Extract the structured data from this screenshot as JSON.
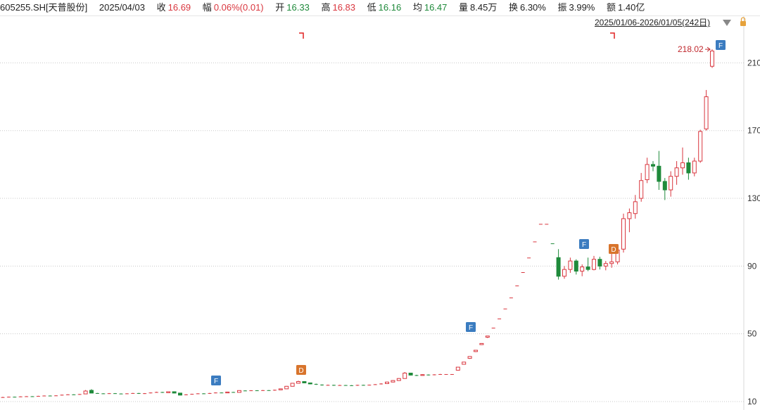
{
  "header": {
    "code": "605255.SH[天普股份]",
    "date": "2025/04/03",
    "fields": [
      {
        "label": "收",
        "value": "16.69"
      },
      {
        "label": "幅",
        "value": "0.06%(0.01)"
      },
      {
        "label": "开",
        "value": "16.33"
      },
      {
        "label": "高",
        "value": "16.83"
      },
      {
        "label": "低",
        "value": "16.16"
      },
      {
        "label": "均",
        "value": "16.47"
      },
      {
        "label": "量",
        "value": "8.45万"
      },
      {
        "label": "换",
        "value": "6.30%"
      },
      {
        "label": "振",
        "value": "3.99%"
      },
      {
        "label": "额",
        "value": "1.40亿"
      }
    ],
    "range": "2025/01/06-2026/01/05(242日)"
  },
  "chart_data": {
    "type": "candlestick",
    "up_color": "#d9363e",
    "down_color": "#1f8a3b",
    "grid": true,
    "ylim": [
      5,
      238
    ],
    "yticks": [
      10,
      50,
      90,
      130,
      170,
      210
    ],
    "annotation": "218.02",
    "markers": [
      "F",
      "D",
      "F",
      "F",
      "D",
      "F"
    ],
    "open": [
      12.5,
      12.6,
      12.8,
      12.7,
      13.0,
      13.1,
      13.0,
      13.3,
      13.5,
      13.4,
      13.6,
      14.0,
      14.2,
      14.1,
      14.5,
      16.6,
      15.0,
      14.8,
      14.6,
      14.9,
      14.7,
      14.5,
      14.8,
      15.0,
      14.6,
      14.9,
      15.3,
      15.6,
      15.2,
      15.8,
      15.0,
      13.8,
      14.2,
      14.5,
      14.8,
      14.6,
      15.0,
      15.3,
      15.1,
      15.6,
      15.4,
      16.5,
      16.3,
      16.6,
      16.4,
      16.7,
      16.5,
      16.9,
      17.5,
      19.0,
      20.8,
      21.8,
      21.0,
      20.4,
      20.0,
      19.6,
      19.8,
      19.5,
      19.7,
      19.6,
      19.4,
      19.8,
      19.6,
      19.9,
      20.2,
      20.6,
      21.5,
      22.4,
      23.6,
      26.8,
      25.6,
      25.4,
      25.9,
      25.6,
      26.0,
      26.2,
      26.2,
      28.5,
      32.0,
      35.5,
      39.5,
      43.6,
      48.0,
      53.6,
      59.0,
      64.9,
      71.4,
      78.5,
      86.4,
      95.0,
      104.5,
      114.9,
      114.9,
      103.4,
      95.0,
      84.0,
      88.0,
      93.0,
      87.0,
      89.5,
      88.0,
      94.0,
      90.0,
      91.5,
      92.5,
      100.0,
      118.0,
      121.0,
      130.0,
      141.0,
      150.0,
      149.0,
      140.0,
      135.0,
      143.0,
      148.0,
      151.0,
      145.0,
      152.0,
      171.0,
      208.0
    ],
    "high": [
      12.8,
      12.9,
      12.9,
      13.1,
      13.2,
      13.2,
      13.4,
      13.6,
      13.6,
      13.7,
      14.1,
      14.3,
      14.3,
      14.5,
      16.8,
      17.3,
      15.1,
      14.9,
      15.0,
      15.0,
      14.8,
      14.9,
      15.1,
      15.1,
      15.0,
      15.4,
      15.8,
      15.7,
      16.0,
      15.9,
      15.1,
      14.3,
      14.6,
      14.9,
      14.9,
      15.1,
      15.4,
      15.4,
      15.7,
      15.7,
      16.6,
      16.6,
      16.7,
      16.7,
      16.8,
      16.8,
      17.0,
      17.7,
      19.2,
      21.0,
      22.3,
      22.0,
      21.2,
      20.6,
      20.1,
      20.0,
      19.9,
      19.9,
      19.8,
      19.7,
      19.9,
      19.9,
      20.0,
      20.3,
      20.8,
      21.7,
      22.6,
      23.8,
      27.4,
      27.0,
      25.8,
      26.1,
      26.0,
      26.1,
      26.3,
      26.2,
      26.2,
      30.3,
      33.3,
      36.6,
      40.3,
      44.3,
      48.7,
      53.6,
      59.0,
      64.9,
      71.4,
      78.5,
      86.4,
      95.0,
      104.5,
      114.9,
      114.9,
      103.4,
      100.0,
      90.0,
      95.0,
      94.0,
      91.0,
      95.0,
      96.0,
      95.5,
      93.0,
      98.0,
      102.0,
      121.0,
      124.0,
      132.0,
      145.0,
      154.0,
      152.0,
      158.0,
      142.0,
      146.0,
      152.0,
      160.0,
      154.0,
      154.0,
      170.5,
      194.0,
      218.02
    ],
    "low": [
      12.4,
      12.5,
      12.6,
      12.6,
      12.9,
      12.9,
      12.9,
      13.2,
      13.3,
      13.3,
      13.5,
      13.9,
      14.0,
      14.0,
      14.4,
      14.9,
      14.6,
      14.5,
      14.5,
      14.6,
      14.4,
      14.4,
      14.7,
      14.5,
      14.5,
      14.8,
      15.2,
      15.1,
      15.1,
      14.9,
      13.6,
      13.7,
      14.1,
      14.4,
      14.5,
      14.5,
      14.9,
      15.0,
      15.0,
      15.3,
      15.3,
      16.2,
      16.2,
      16.3,
      16.3,
      16.4,
      16.4,
      16.8,
      17.4,
      18.9,
      20.6,
      20.8,
      20.2,
      19.8,
      19.4,
      19.5,
      19.3,
      19.4,
      19.4,
      19.2,
      19.3,
      19.5,
      19.5,
      19.8,
      20.1,
      20.5,
      21.4,
      22.2,
      23.5,
      25.4,
      25.1,
      25.3,
      25.4,
      25.5,
      25.9,
      26.2,
      26.2,
      28.3,
      31.8,
      35.2,
      39.2,
      43.4,
      47.5,
      53.6,
      59.0,
      64.9,
      71.4,
      78.5,
      86.4,
      95.0,
      104.5,
      114.9,
      114.9,
      103.4,
      82.0,
      82.5,
      86.0,
      85.0,
      84.0,
      87.0,
      87.5,
      88.0,
      87.5,
      89.0,
      91.0,
      98.0,
      110.0,
      118.0,
      128.0,
      139.0,
      146.0,
      135.0,
      129.0,
      131.0,
      138.0,
      144.0,
      141.0,
      143.0,
      151.0,
      170.0,
      207.0
    ],
    "close": [
      12.6,
      12.8,
      12.7,
      13.0,
      13.1,
      13.0,
      13.3,
      13.5,
      13.4,
      13.6,
      14.0,
      14.2,
      14.1,
      14.4,
      16.2,
      15.0,
      14.8,
      14.6,
      14.9,
      14.7,
      14.5,
      14.8,
      15.0,
      14.6,
      14.9,
      15.3,
      15.6,
      15.2,
      15.8,
      15.0,
      13.8,
      14.2,
      14.5,
      14.8,
      14.6,
      15.0,
      15.3,
      15.1,
      15.6,
      15.4,
      16.5,
      16.3,
      16.6,
      16.4,
      16.7,
      16.5,
      16.9,
      17.5,
      19.0,
      20.8,
      21.8,
      21.0,
      20.4,
      20.0,
      19.6,
      19.8,
      19.5,
      19.7,
      19.6,
      19.4,
      19.8,
      19.6,
      19.9,
      20.2,
      20.6,
      21.5,
      22.4,
      23.6,
      26.8,
      25.6,
      25.4,
      25.9,
      25.6,
      26.0,
      26.2,
      26.2,
      26.2,
      30.3,
      33.3,
      36.6,
      40.3,
      44.3,
      48.7,
      53.6,
      59.0,
      64.9,
      71.4,
      78.5,
      86.4,
      95.0,
      104.5,
      114.9,
      114.9,
      103.4,
      84.0,
      88.0,
      93.0,
      87.0,
      89.5,
      88.0,
      94.0,
      90.0,
      91.5,
      92.5,
      99.5,
      118.0,
      121.5,
      128.0,
      140.5,
      150.0,
      149.0,
      140.0,
      135.0,
      143.0,
      148.0,
      151.0,
      145.0,
      152.0,
      169.5,
      190.0,
      217.0
    ]
  }
}
